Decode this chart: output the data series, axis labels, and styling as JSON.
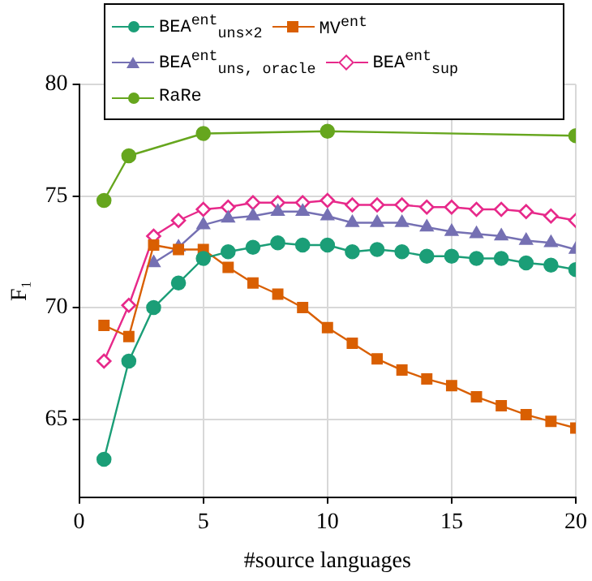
{
  "chart_data": {
    "type": "line",
    "xlabel": "#source languages",
    "ylabel": "F₁",
    "x": [
      1,
      2,
      3,
      4,
      5,
      6,
      7,
      8,
      9,
      10,
      11,
      12,
      13,
      14,
      15,
      16,
      17,
      18,
      19,
      20
    ],
    "xlim": [
      0,
      20
    ],
    "xticks": [
      0,
      5,
      10,
      15,
      20
    ],
    "ylim": [
      61.5,
      80
    ],
    "yticks": [
      65,
      70,
      75,
      80
    ],
    "grid": true,
    "legend": "top",
    "line_style": "solid",
    "series": [
      {
        "name": "BEA$^{ent}$$_{uns×2}$",
        "color": "#1b9e77",
        "marker": "circle",
        "values": [
          63.2,
          67.6,
          70.0,
          71.1,
          72.2,
          72.5,
          72.7,
          72.9,
          72.8,
          72.8,
          72.5,
          72.6,
          72.5,
          72.3,
          72.3,
          72.2,
          72.2,
          72.0,
          71.9,
          71.7
        ]
      },
      {
        "name": "MV$^{ent}$",
        "color": "#d95f02",
        "marker": "square",
        "values": [
          69.2,
          68.7,
          72.8,
          72.6,
          72.6,
          71.8,
          71.1,
          70.6,
          70.0,
          69.1,
          68.4,
          67.7,
          67.2,
          66.8,
          66.5,
          66.0,
          65.6,
          65.2,
          64.9,
          64.6
        ]
      },
      {
        "name": "BEA$^{ent}$$_{uns, oracle}$",
        "color": "#7570b3",
        "marker": "triangle",
        "values": [
          null,
          null,
          72.0,
          72.7,
          73.7,
          74.0,
          74.1,
          74.3,
          74.3,
          74.1,
          73.8,
          73.8,
          73.8,
          73.6,
          73.4,
          73.3,
          73.2,
          73.0,
          72.9,
          72.6
        ]
      },
      {
        "name": "BEA$^{ent}$$_{sup}$",
        "color": "#e7298a",
        "marker": "diamond",
        "values": [
          67.6,
          70.1,
          73.2,
          73.9,
          74.4,
          74.5,
          74.7,
          74.7,
          74.7,
          74.8,
          74.6,
          74.6,
          74.6,
          74.5,
          74.5,
          74.4,
          74.4,
          74.3,
          74.1,
          73.9
        ]
      },
      {
        "name": "RaRe",
        "color": "#66a61e",
        "marker": "circle",
        "x": [
          1,
          2,
          5,
          10,
          20
        ],
        "values": [
          74.8,
          76.8,
          77.8,
          77.9,
          77.7
        ]
      }
    ]
  }
}
